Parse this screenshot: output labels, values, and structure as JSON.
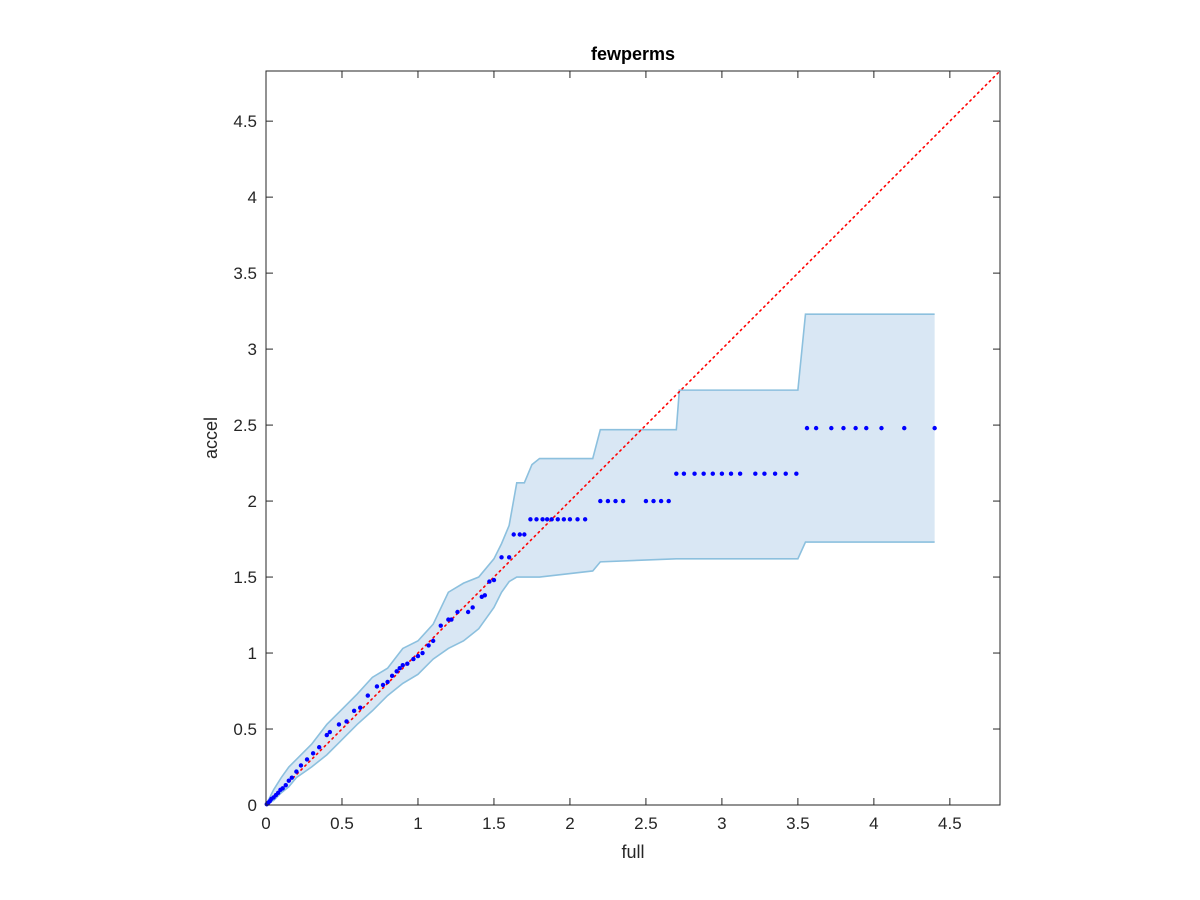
{
  "chart_data": {
    "type": "scatter",
    "title": "fewperms",
    "xlabel": "full",
    "ylabel": "accel",
    "xlim": [
      0,
      4.83
    ],
    "ylim": [
      0,
      4.83
    ],
    "xticks": [
      0,
      0.5,
      1,
      1.5,
      2,
      2.5,
      3,
      3.5,
      4,
      4.5
    ],
    "yticks": [
      0,
      0.5,
      1,
      1.5,
      2,
      2.5,
      3,
      3.5,
      4,
      4.5
    ],
    "xtick_labels": [
      "0",
      "0.5",
      "1",
      "1.5",
      "2",
      "2.5",
      "3",
      "3.5",
      "4",
      "4.5"
    ],
    "ytick_labels": [
      "0",
      "0.5",
      "1",
      "1.5",
      "2",
      "2.5",
      "3",
      "3.5",
      "4",
      "4.5"
    ],
    "grid": false,
    "colors": {
      "points": "#0000ff",
      "reference_line": "#ff0000",
      "band_fill": "#d9e7f4",
      "band_edge": "#8cc0de",
      "axes": "#262626"
    },
    "reference_line": {
      "x": [
        0,
        4.83
      ],
      "y": [
        0,
        4.83
      ],
      "style": "dotted"
    },
    "band": {
      "x": [
        0,
        0.05,
        0.1,
        0.15,
        0.2,
        0.3,
        0.4,
        0.5,
        0.6,
        0.7,
        0.8,
        0.9,
        1.0,
        1.1,
        1.2,
        1.3,
        1.4,
        1.5,
        1.55,
        1.6,
        1.65,
        1.7,
        1.75,
        1.8,
        2.15,
        2.2,
        2.7,
        2.72,
        3.5,
        3.55,
        4.4
      ],
      "upper": [
        0,
        0.1,
        0.18,
        0.25,
        0.3,
        0.4,
        0.53,
        0.63,
        0.73,
        0.84,
        0.9,
        1.03,
        1.08,
        1.19,
        1.4,
        1.46,
        1.5,
        1.62,
        1.72,
        1.84,
        2.12,
        2.12,
        2.24,
        2.28,
        2.28,
        2.47,
        2.47,
        2.73,
        2.73,
        3.23,
        3.23
      ],
      "lower": [
        0,
        0.03,
        0.08,
        0.12,
        0.18,
        0.25,
        0.33,
        0.43,
        0.53,
        0.62,
        0.72,
        0.8,
        0.86,
        0.96,
        1.03,
        1.08,
        1.16,
        1.3,
        1.4,
        1.47,
        1.5,
        1.5,
        1.5,
        1.5,
        1.54,
        1.6,
        1.62,
        1.62,
        1.62,
        1.73,
        1.73
      ]
    },
    "series": [
      {
        "x": [
          0.005,
          0.015,
          0.025,
          0.035,
          0.05,
          0.065,
          0.08,
          0.095,
          0.11,
          0.13,
          0.15,
          0.17,
          0.2,
          0.23,
          0.27,
          0.31,
          0.35,
          0.4,
          0.42,
          0.48,
          0.53,
          0.58,
          0.62,
          0.67,
          0.73,
          0.77,
          0.8,
          0.83,
          0.86,
          0.88,
          0.9,
          0.93,
          0.97,
          1.0,
          1.03,
          1.07,
          1.1,
          1.15,
          1.2,
          1.22,
          1.26,
          1.33,
          1.36,
          1.42,
          1.44,
          1.47,
          1.5,
          1.55,
          1.6,
          1.63,
          1.67,
          1.7,
          1.74,
          1.78,
          1.82,
          1.85,
          1.88,
          1.92,
          1.96,
          2.0,
          2.05,
          2.1,
          2.2,
          2.25,
          2.3,
          2.35,
          2.5,
          2.55,
          2.6,
          2.65,
          2.7,
          2.75,
          2.82,
          2.88,
          2.94,
          3.0,
          3.06,
          3.12,
          3.22,
          3.28,
          3.35,
          3.42,
          3.49,
          3.56,
          3.62,
          3.72,
          3.8,
          3.88,
          3.95,
          4.05,
          4.2,
          4.4
        ],
        "y": [
          0.005,
          0.015,
          0.025,
          0.04,
          0.05,
          0.065,
          0.08,
          0.1,
          0.11,
          0.13,
          0.16,
          0.18,
          0.22,
          0.26,
          0.3,
          0.34,
          0.38,
          0.46,
          0.48,
          0.53,
          0.55,
          0.62,
          0.64,
          0.72,
          0.78,
          0.79,
          0.81,
          0.85,
          0.88,
          0.9,
          0.92,
          0.93,
          0.96,
          0.98,
          1.0,
          1.05,
          1.08,
          1.18,
          1.22,
          1.22,
          1.27,
          1.27,
          1.3,
          1.37,
          1.38,
          1.47,
          1.48,
          1.63,
          1.63,
          1.78,
          1.78,
          1.78,
          1.88,
          1.88,
          1.88,
          1.88,
          1.88,
          1.88,
          1.88,
          1.88,
          1.88,
          1.88,
          2.0,
          2.0,
          2.0,
          2.0,
          2.0,
          2.0,
          2.0,
          2.0,
          2.18,
          2.18,
          2.18,
          2.18,
          2.18,
          2.18,
          2.18,
          2.18,
          2.18,
          2.18,
          2.18,
          2.18,
          2.18,
          2.48,
          2.48,
          2.48,
          2.48,
          2.48,
          2.48,
          2.48,
          2.48,
          2.48
        ]
      }
    ]
  }
}
